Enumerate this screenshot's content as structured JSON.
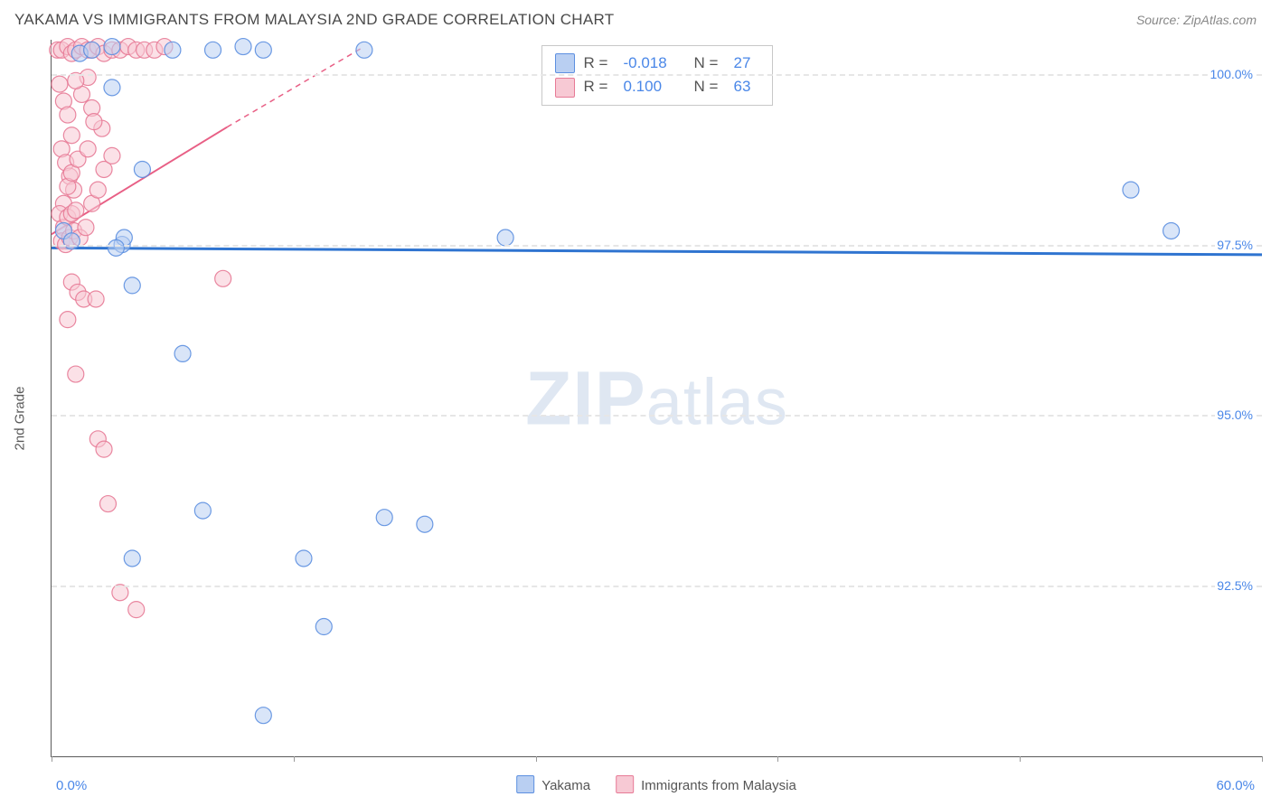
{
  "header": {
    "title": "YAKAMA VS IMMIGRANTS FROM MALAYSIA 2ND GRADE CORRELATION CHART",
    "source_prefix": "Source: ",
    "source_name": "ZipAtlas.com"
  },
  "chart": {
    "type": "scatter",
    "yaxis_label": "2nd Grade",
    "xlim": [
      0,
      60
    ],
    "ylim": [
      90.0,
      100.5
    ],
    "xlim_labels": {
      "min": "0.0%",
      "max": "60.0%"
    },
    "ytick_values": [
      92.5,
      95.0,
      97.5,
      100.0
    ],
    "ytick_labels": [
      "92.5%",
      "95.0%",
      "97.5%",
      "100.0%"
    ],
    "xtick_values": [
      0,
      12,
      24,
      36,
      48,
      60
    ],
    "background_color": "#ffffff",
    "grid_color": "#e6e6e6",
    "axis_color": "#5a5a5a",
    "tick_label_color": "#4a87e8",
    "marker_radius": 9,
    "marker_opacity": 0.55,
    "marker_stroke_opacity": 0.9,
    "series": [
      {
        "name": "Yakama",
        "fill": "#b9cff2",
        "stroke": "#5c8fe0",
        "R": "-0.018",
        "N": "27",
        "trend_style": "solid",
        "trend_color": "#2f74d0",
        "trend_width": 3,
        "trend": {
          "x1": 0,
          "y1": 97.45,
          "x2": 60,
          "y2": 97.35
        },
        "points": [
          [
            0.6,
            97.7
          ],
          [
            1.0,
            97.55
          ],
          [
            1.4,
            100.3
          ],
          [
            2.0,
            100.35
          ],
          [
            3.0,
            99.8
          ],
          [
            3.0,
            100.4
          ],
          [
            3.5,
            97.5
          ],
          [
            3.6,
            97.6
          ],
          [
            4.0,
            96.9
          ],
          [
            4.5,
            98.6
          ],
          [
            6.0,
            100.35
          ],
          [
            6.5,
            95.9
          ],
          [
            8.0,
            100.35
          ],
          [
            9.5,
            100.4
          ],
          [
            10.5,
            100.35
          ],
          [
            15.5,
            100.35
          ],
          [
            7.5,
            93.6
          ],
          [
            4.0,
            92.9
          ],
          [
            12.5,
            92.9
          ],
          [
            13.5,
            91.9
          ],
          [
            18.5,
            93.4
          ],
          [
            10.5,
            90.6
          ],
          [
            22.5,
            97.6
          ],
          [
            16.5,
            93.5
          ],
          [
            53.5,
            98.3
          ],
          [
            55.5,
            97.7
          ],
          [
            3.2,
            97.45
          ]
        ]
      },
      {
        "name": "Immigrants from Malaysia",
        "fill": "#f7c9d4",
        "stroke": "#e77a96",
        "R": "0.100",
        "N": "63",
        "trend_style": "solid_to_dashed",
        "trend_color": "#e85f85",
        "trend_width": 2,
        "trend": {
          "x1": 0,
          "y1": 97.65,
          "x2": 15,
          "y2": 100.35
        },
        "trend_dashed_ext": {
          "x1": 8.7,
          "y1": 99.22,
          "x2": 15.5,
          "y2": 100.4
        },
        "points": [
          [
            0.3,
            100.35
          ],
          [
            0.5,
            100.35
          ],
          [
            0.8,
            100.4
          ],
          [
            1.0,
            100.3
          ],
          [
            1.2,
            100.35
          ],
          [
            1.5,
            100.4
          ],
          [
            1.8,
            100.35
          ],
          [
            2.0,
            100.35
          ],
          [
            2.3,
            100.4
          ],
          [
            2.6,
            100.3
          ],
          [
            3.0,
            100.35
          ],
          [
            3.4,
            100.35
          ],
          [
            3.8,
            100.4
          ],
          [
            4.2,
            100.35
          ],
          [
            4.6,
            100.35
          ],
          [
            5.1,
            100.35
          ],
          [
            5.6,
            100.4
          ],
          [
            0.4,
            99.85
          ],
          [
            0.6,
            99.6
          ],
          [
            0.8,
            99.4
          ],
          [
            1.0,
            99.1
          ],
          [
            0.5,
            98.9
          ],
          [
            0.7,
            98.7
          ],
          [
            0.9,
            98.5
          ],
          [
            1.1,
            98.3
          ],
          [
            0.6,
            98.1
          ],
          [
            0.8,
            98.35
          ],
          [
            1.0,
            98.55
          ],
          [
            1.3,
            98.75
          ],
          [
            0.4,
            97.95
          ],
          [
            0.6,
            97.75
          ],
          [
            0.8,
            97.9
          ],
          [
            1.0,
            97.95
          ],
          [
            1.2,
            98.0
          ],
          [
            0.5,
            97.55
          ],
          [
            0.7,
            97.5
          ],
          [
            0.9,
            97.6
          ],
          [
            1.1,
            97.7
          ],
          [
            1.4,
            97.6
          ],
          [
            1.7,
            97.75
          ],
          [
            2.0,
            98.1
          ],
          [
            2.3,
            98.3
          ],
          [
            2.6,
            98.6
          ],
          [
            3.0,
            98.8
          ],
          [
            1.0,
            96.95
          ],
          [
            1.3,
            96.8
          ],
          [
            1.6,
            96.7
          ],
          [
            2.2,
            96.7
          ],
          [
            0.8,
            96.4
          ],
          [
            1.2,
            95.6
          ],
          [
            3.4,
            92.4
          ],
          [
            4.2,
            92.15
          ],
          [
            8.5,
            97.0
          ],
          [
            2.3,
            94.65
          ],
          [
            2.6,
            94.5
          ],
          [
            2.0,
            99.5
          ],
          [
            2.5,
            99.2
          ],
          [
            1.8,
            98.9
          ],
          [
            1.5,
            99.7
          ],
          [
            1.8,
            99.95
          ],
          [
            2.1,
            99.3
          ],
          [
            1.2,
            99.9
          ],
          [
            2.8,
            93.7
          ]
        ]
      }
    ],
    "legend_bottom": {
      "items": [
        {
          "label": "Yakama",
          "fill": "#b9cff2",
          "stroke": "#5c8fe0"
        },
        {
          "label": "Immigrants from Malaysia",
          "fill": "#f7c9d4",
          "stroke": "#e77a96"
        }
      ]
    },
    "watermark": {
      "bold": "ZIP",
      "rest": "atlas"
    }
  }
}
